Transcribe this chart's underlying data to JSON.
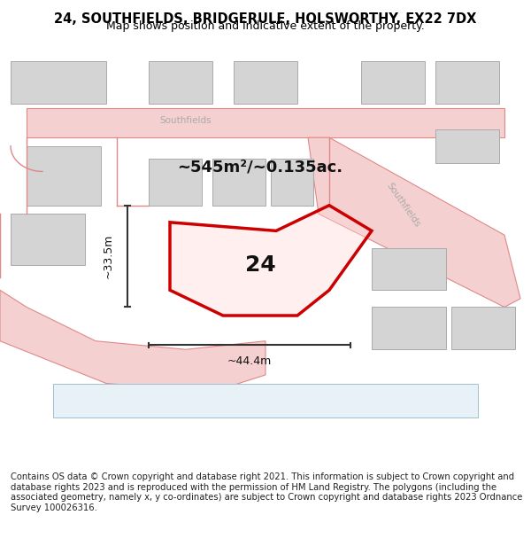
{
  "title": "24, SOUTHFIELDS, BRIDGERULE, HOLSWORTHY, EX22 7DX",
  "subtitle": "Map shows position and indicative extent of the property.",
  "area_label": "~545m²/~0.135ac.",
  "width_label": "~44.4m",
  "height_label": "~33.5m",
  "property_number": "24",
  "footer": "Contains OS data © Crown copyright and database right 2021. This information is subject to Crown copyright and database rights 2023 and is reproduced with the permission of HM Land Registry. The polygons (including the associated geometry, namely x, y co-ordinates) are subject to Crown copyright and database rights 2023 Ordnance Survey 100026316.",
  "bg_color": "#ffffff",
  "map_bg": "#f9f9f9",
  "road_color": "#f0c8c8",
  "road_outline_color": "#d08080",
  "building_color": "#d8d8d8",
  "building_outline": "#b0b0b0",
  "property_color_fill": "rgba(255,200,200,0.3)",
  "property_color_line": "#cc0000",
  "dim_line_color": "#333333",
  "road_label_color": "#a0a0a0",
  "figsize": [
    6.0,
    6.25
  ],
  "dpi": 100
}
